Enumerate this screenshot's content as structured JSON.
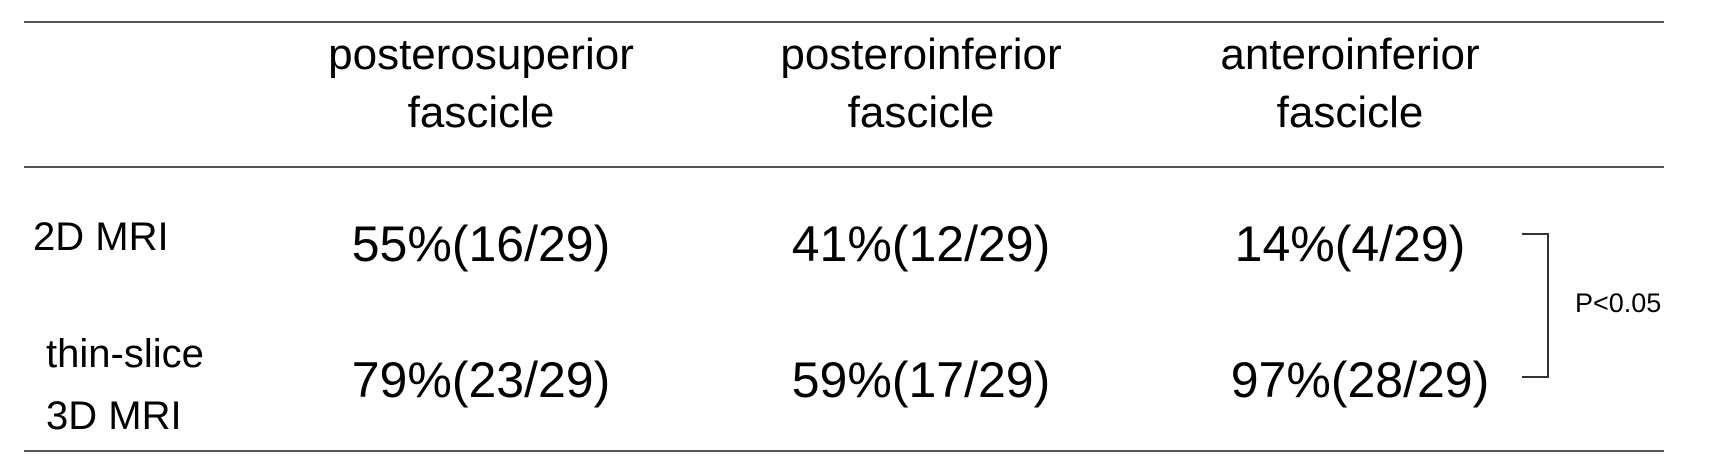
{
  "table": {
    "columns": [
      "posterosuperior fascicle",
      "posteroinferior fascicle",
      "anteroinferior fascicle"
    ],
    "column_lines": [
      [
        "posterosuperior",
        "fascicle"
      ],
      [
        "posteroinferior",
        "fascicle"
      ],
      [
        "anteroinferior",
        "fascicle"
      ]
    ],
    "rows": [
      {
        "label": "2D MRI",
        "label_lines": [
          "2D MRI"
        ],
        "cells": [
          "55%(16/29)",
          "41%(12/29)",
          "14%(4/29)"
        ]
      },
      {
        "label": "thin-slice 3D MRI",
        "label_lines": [
          "thin-slice",
          "3D MRI"
        ],
        "cells": [
          "79%(23/29)",
          "59%(17/29)",
          "97%(28/29)"
        ]
      }
    ],
    "significance": "P<0.05"
  }
}
